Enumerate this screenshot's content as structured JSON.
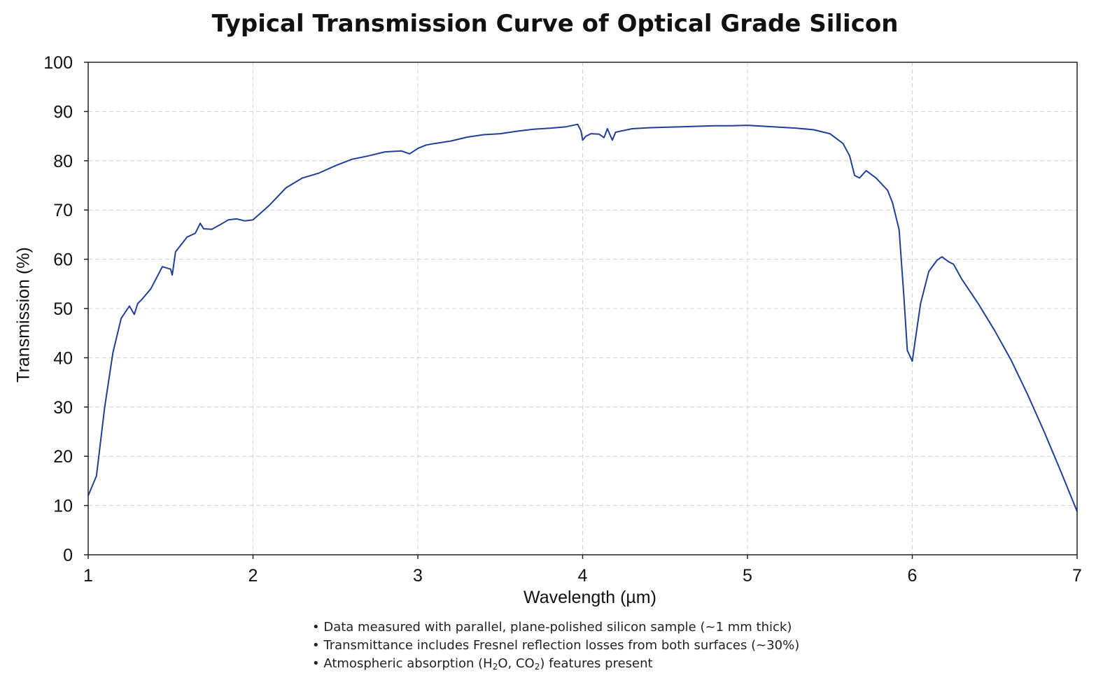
{
  "chart_data": {
    "type": "line",
    "title": "Typical Transmission Curve of Optical Grade Silicon",
    "xlabel": "Wavelength (µm)",
    "ylabel": "Transmission (%)",
    "xlim": [
      1,
      7
    ],
    "ylim": [
      0,
      100
    ],
    "x_ticks": [
      "1",
      "2",
      "3",
      "4",
      "5",
      "6",
      "7"
    ],
    "y_ticks": [
      "0",
      "10",
      "20",
      "30",
      "40",
      "50",
      "60",
      "70",
      "80",
      "90",
      "100"
    ],
    "grid": true,
    "line_color": "#1f3f99",
    "series": [
      {
        "x": [
          1.0,
          1.05,
          1.1,
          1.15,
          1.2,
          1.25,
          1.28,
          1.3,
          1.33,
          1.38,
          1.45,
          1.5,
          1.51,
          1.53,
          1.6,
          1.65,
          1.68,
          1.7,
          1.75,
          1.8,
          1.85,
          1.9,
          1.95,
          2.0,
          2.1,
          2.2,
          2.3,
          2.4,
          2.5,
          2.6,
          2.7,
          2.8,
          2.9,
          2.95,
          3.0,
          3.05,
          3.1,
          3.2,
          3.3,
          3.4,
          3.5,
          3.6,
          3.7,
          3.8,
          3.9,
          3.97,
          3.99,
          4.0,
          4.02,
          4.05,
          4.1,
          4.13,
          4.15,
          4.18,
          4.2,
          4.3,
          4.4,
          4.5,
          4.6,
          4.7,
          4.8,
          4.9,
          5.0,
          5.1,
          5.2,
          5.3,
          5.4,
          5.5,
          5.58,
          5.62,
          5.65,
          5.68,
          5.72,
          5.78,
          5.85,
          5.88,
          5.92,
          5.95,
          5.97,
          6.0,
          6.02,
          6.05,
          6.1,
          6.15,
          6.18,
          6.22,
          6.25,
          6.3,
          6.35,
          6.4,
          6.5,
          6.6,
          6.7,
          6.8,
          6.9,
          7.0
        ],
        "y": [
          12,
          16,
          30,
          41,
          48,
          50.5,
          48.8,
          51,
          52,
          54,
          58.5,
          58,
          56.8,
          61.5,
          64.5,
          65.3,
          67.3,
          66.2,
          66.1,
          67,
          68,
          68.2,
          67.8,
          68,
          71,
          74.5,
          76.5,
          77.5,
          79,
          80.3,
          81,
          81.8,
          82,
          81.4,
          82.5,
          83.2,
          83.5,
          84,
          84.8,
          85.3,
          85.5,
          86,
          86.4,
          86.6,
          86.9,
          87.4,
          86.1,
          84.2,
          85,
          85.5,
          85.4,
          84.7,
          86.5,
          84.2,
          85.8,
          86.5,
          86.7,
          86.8,
          86.9,
          87,
          87.1,
          87.1,
          87.2,
          87,
          86.8,
          86.6,
          86.3,
          85.5,
          83.5,
          81,
          77,
          76.5,
          78,
          76.5,
          74,
          71.5,
          66,
          52,
          41.5,
          39.3,
          44,
          51,
          57.5,
          59.8,
          60.5,
          59.5,
          59,
          56,
          53.5,
          51,
          45.5,
          39.5,
          32.5,
          25,
          17,
          8.8
        ]
      }
    ]
  },
  "notes": [
    "Data measured with parallel, plane-polished silicon sample (~1 mm thick)",
    "Transmittance includes Fresnel reflection losses from both surfaces (~30%)",
    "Atmospheric absorption (H2O, CO2) features present"
  ]
}
